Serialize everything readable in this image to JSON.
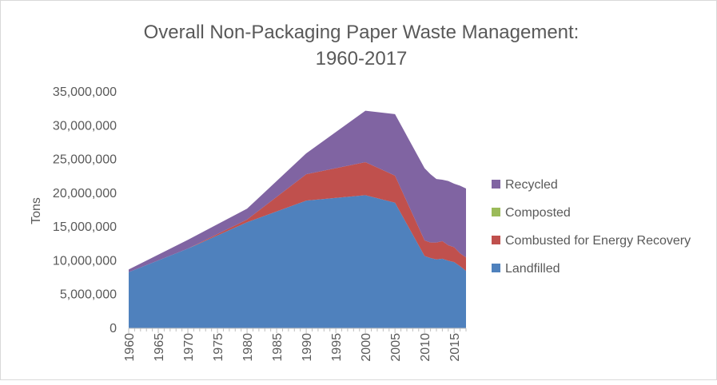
{
  "chart_data": {
    "type": "area",
    "stacked": true,
    "title_line1": "Overall Non-Packaging Paper Waste Management:",
    "title_line2": "1960-2017",
    "xlabel": "",
    "ylabel": "Tons",
    "ylim": [
      0,
      35000000
    ],
    "yticks": [
      0,
      5000000,
      10000000,
      15000000,
      20000000,
      25000000,
      30000000,
      35000000
    ],
    "ytick_labels": [
      "0",
      "5,000,000",
      "10,000,000",
      "15,000,000",
      "20,000,000",
      "25,000,000",
      "30,000,000",
      "35,000,000"
    ],
    "xlim": [
      1960,
      2017
    ],
    "xticks": [
      1960,
      1965,
      1970,
      1975,
      1980,
      1985,
      1990,
      1995,
      2000,
      2005,
      2010,
      2015
    ],
    "xtick_labels": [
      "1960",
      "1965",
      "1970",
      "1975",
      "1980",
      "1985",
      "1990",
      "1995",
      "2000",
      "2005",
      "2010",
      "2015"
    ],
    "grid": false,
    "legend_position": "right",
    "x": [
      1960,
      1970,
      1980,
      1990,
      2000,
      2005,
      2010,
      2011,
      2012,
      2013,
      2014,
      2015,
      2016,
      2017
    ],
    "series": [
      {
        "name": "Landfilled",
        "color": "#4f81bd",
        "values": [
          8300000,
          11800000,
          15700000,
          18900000,
          19700000,
          18600000,
          10700000,
          10400000,
          10200000,
          10300000,
          10000000,
          9800000,
          9200000,
          8500000
        ]
      },
      {
        "name": "Combusted for Energy Recovery",
        "color": "#c0504d",
        "values": [
          0,
          0,
          400000,
          3900000,
          4900000,
          4000000,
          2300000,
          2300000,
          2500000,
          2600000,
          2300000,
          2200000,
          1900000,
          2000000
        ]
      },
      {
        "name": "Composted",
        "color": "#9bbb59",
        "values": [
          0,
          0,
          0,
          0,
          0,
          0,
          0,
          0,
          0,
          0,
          0,
          0,
          0,
          0
        ]
      },
      {
        "name": "Recycled",
        "color": "#8064a2",
        "values": [
          400000,
          1300000,
          1600000,
          3100000,
          7600000,
          9100000,
          10700000,
          10100000,
          9400000,
          9100000,
          9500000,
          9400000,
          10000000,
          10200000
        ]
      }
    ],
    "legend_order": [
      "Recycled",
      "Composted",
      "Combusted for Energy Recovery",
      "Landfilled"
    ]
  }
}
